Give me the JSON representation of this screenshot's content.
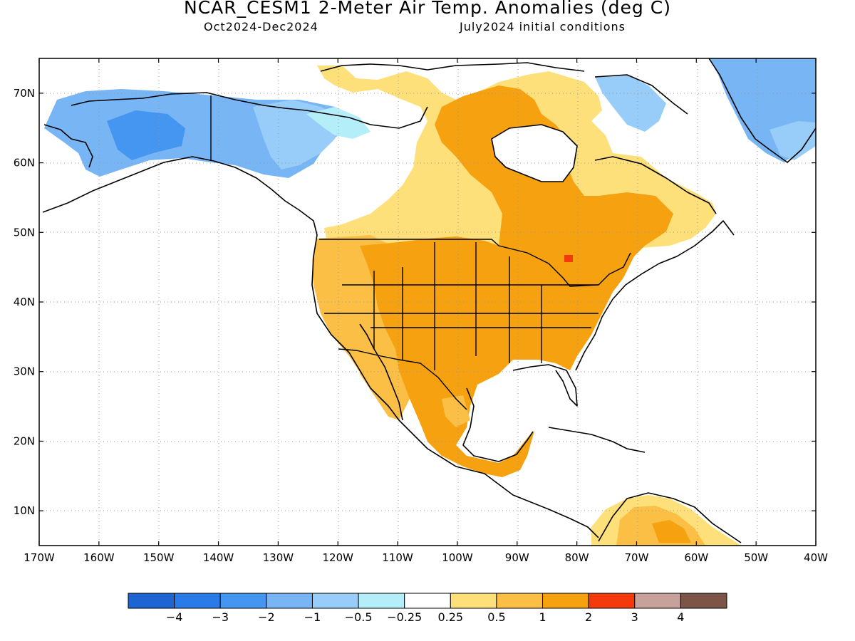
{
  "header": {
    "title": "NCAR_CESM1 2-Meter Air Temp. Anomalies (deg C)",
    "period": "Oct2024-Dec2024",
    "init": "July2024 initial conditions"
  },
  "chart_data": {
    "type": "heatmap",
    "title": "NCAR_CESM1 2-Meter Air Temp. Anomalies (deg C)",
    "subtitle_left": "Oct2024-Dec2024",
    "subtitle_right": "July2024 initial conditions",
    "grid": true,
    "lon_range": [
      -170,
      -40
    ],
    "lat_range": [
      5,
      75
    ],
    "x_ticks": [
      "170W",
      "160W",
      "150W",
      "140W",
      "130W",
      "120W",
      "110W",
      "100W",
      "90W",
      "80W",
      "70W",
      "60W",
      "50W",
      "40W"
    ],
    "y_ticks": [
      "10N",
      "20N",
      "30N",
      "40N",
      "50N",
      "60N",
      "70N"
    ],
    "colorbar": {
      "labels": [
        "-4",
        "-3",
        "-2",
        "-1",
        "-0.5",
        "-0.25",
        "0.25",
        "0.5",
        "1",
        "2",
        "3",
        "4"
      ],
      "colors": [
        "#1e64d2",
        "#2a7be8",
        "#4496f0",
        "#78b5f5",
        "#98cdf9",
        "#b3eef9",
        "#ffffff",
        "#fde07a",
        "#fbbf45",
        "#f5a110",
        "#f43a0c",
        "#c8a29a",
        "#7d5548"
      ]
    },
    "regions": [
      {
        "name": "Alaska",
        "anomaly_class": "-2 to -1 with -3 to -2 core"
      },
      {
        "name": "Western Canada",
        "anomaly_class": "-1 to -0.25"
      },
      {
        "name": "Greenland",
        "anomaly_class": "-2 to -1"
      },
      {
        "name": "Contiguous US",
        "anomaly_class": "1 to 2"
      },
      {
        "name": "Eastern Canada",
        "anomaly_class": "1 to 2"
      },
      {
        "name": "Mexico",
        "anomaly_class": "1 to 2"
      },
      {
        "name": "Northern South America",
        "anomaly_class": "0.5 to 2"
      }
    ]
  }
}
